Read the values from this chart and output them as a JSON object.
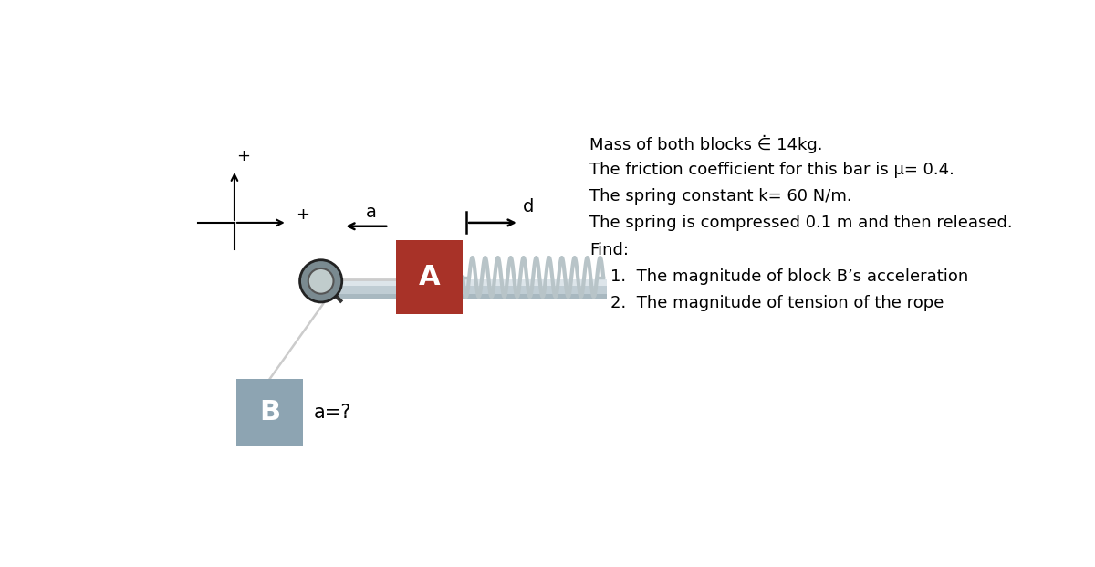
{
  "bg_color": "#ffffff",
  "block_a_color": "#a83228",
  "block_b_color": "#8da4b2",
  "rail_color_main": "#c0cdd4",
  "rail_color_top": "#dde5ea",
  "rail_color_bottom": "#a8b8c0",
  "pulley_outer_color": "#7a8a90",
  "pulley_inner_color": "#c0cccc",
  "pulley_edge_color": "#333333",
  "rope_color": "#cccccc",
  "spring_color": "#b8c4c8",
  "block_a_label": "A",
  "block_b_label": "B",
  "label_a": "a",
  "label_d": "d",
  "label_az": "a=?",
  "text_line1": "Mass of both blocks ⋵ 14kg.",
  "text_line2": "The friction coefficient for this bar is μ= 0.4.",
  "text_line3": "The spring constant k= 60 N/m.",
  "text_line4": "The spring is compressed 0.1 m and then released.",
  "text_line5": "Find:",
  "text_item1": "1.  The magnitude of block B’s acceleration",
  "text_item2": "2.  The magnitude of tension of the rope"
}
